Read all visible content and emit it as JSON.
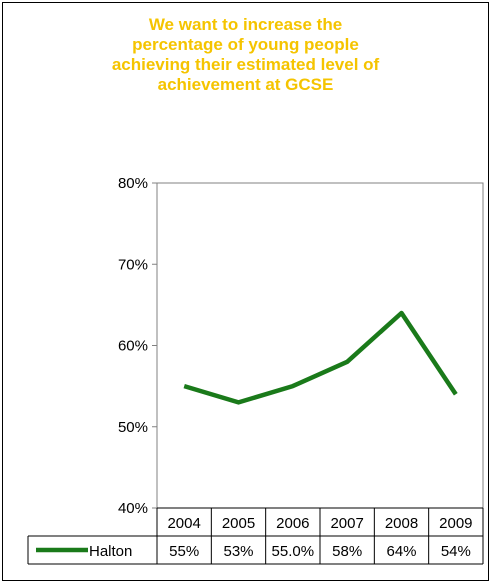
{
  "title_lines": [
    "We want to increase the",
    "percentage of young people",
    "achieving their estimated level of",
    "achievement at GCSE"
  ],
  "colors": {
    "title": "#f5c400",
    "series": "#1a7a1a"
  },
  "chart_data": {
    "type": "line",
    "title": "We want to increase the percentage of young people achieving their estimated level of achievement at GCSE",
    "categories": [
      "2004",
      "2005",
      "2006",
      "2007",
      "2008",
      "2009"
    ],
    "series": [
      {
        "name": "Halton",
        "values": [
          55,
          53,
          55.0,
          58,
          64,
          54
        ],
        "labels": [
          "55%",
          "53%",
          "55.0%",
          "58%",
          "64%",
          "54%"
        ]
      }
    ],
    "ylim": [
      40,
      80
    ],
    "yticks": [
      40,
      50,
      60,
      70,
      80
    ],
    "ytick_labels": [
      "40%",
      "50%",
      "60%",
      "70%",
      "80%"
    ],
    "grid": false,
    "legend": "data-table",
    "xlabel": "",
    "ylabel": ""
  }
}
